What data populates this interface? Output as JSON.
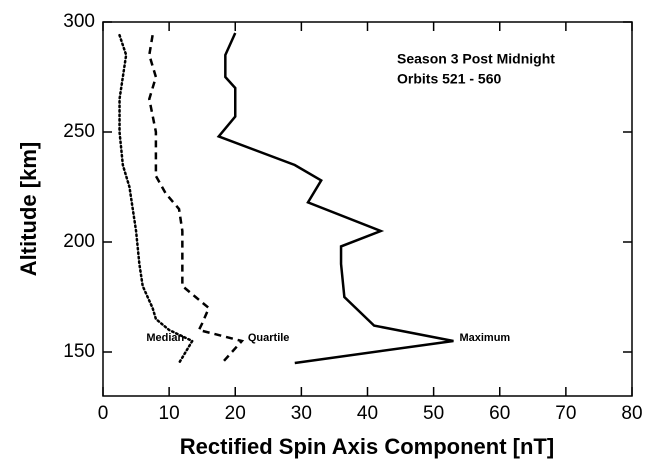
{
  "chart_data": {
    "type": "line",
    "xlabel": "Rectified Spin Axis Component [nT]",
    "ylabel": "Altitude [km]",
    "annotations": [
      "Season 3 Post Midnight",
      "Orbits 521 - 560"
    ],
    "xlim": [
      0,
      80
    ],
    "xticks": [
      0,
      10,
      20,
      30,
      40,
      50,
      60,
      70,
      80
    ],
    "ylim": [
      130,
      300
    ],
    "yticks": [
      150,
      200,
      250,
      300
    ],
    "series": [
      {
        "name": "Median",
        "color": "#000000",
        "linestyle": "dotted",
        "x": [
          2.5,
          3.5,
          3,
          2.5,
          2.5,
          3,
          4,
          4.5,
          5,
          5.5,
          6,
          7.5,
          8,
          10,
          13.5,
          11.5
        ],
        "y": [
          294,
          285,
          275,
          265,
          250,
          235,
          225,
          215,
          205,
          190,
          180,
          170,
          165,
          160,
          155,
          145
        ]
      },
      {
        "name": "Quartile",
        "color": "#000000",
        "linestyle": "dashed",
        "x": [
          7.5,
          7,
          8,
          7,
          8,
          8,
          9.5,
          11.5,
          12,
          12,
          12,
          14,
          16,
          15,
          14.5,
          21,
          18
        ],
        "y": [
          294,
          285,
          275,
          265,
          250,
          230,
          222,
          215,
          205,
          190,
          180,
          175,
          170,
          163,
          160,
          155,
          145
        ]
      },
      {
        "name": "Maximum",
        "color": "#000000",
        "linestyle": "solid",
        "x": [
          20,
          18.5,
          18.5,
          20,
          20,
          17.5,
          29,
          33,
          31,
          42,
          36,
          36,
          36.5,
          41,
          53,
          29
        ],
        "y": [
          295,
          285,
          275,
          270,
          257,
          248,
          235,
          228,
          218,
          205,
          198,
          190,
          175,
          162,
          155,
          145
        ]
      }
    ]
  }
}
